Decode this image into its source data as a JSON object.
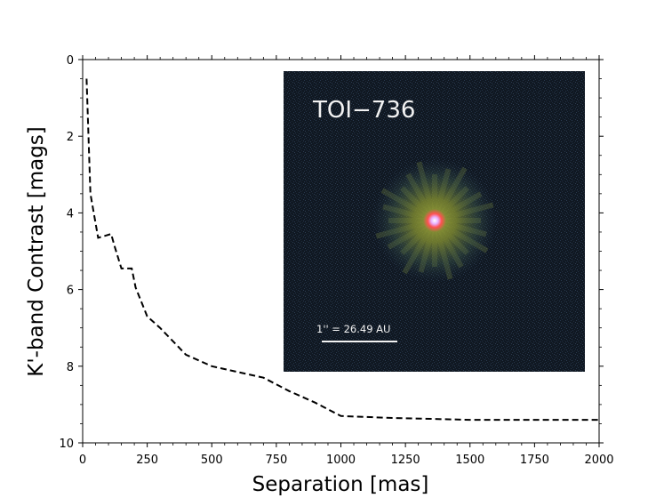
{
  "chart_data": {
    "type": "line",
    "title": "",
    "xlabel": "Separation [mas]",
    "ylabel": "K'-band Contrast [mags]",
    "xlim": [
      0,
      2000
    ],
    "ylim": [
      10,
      0
    ],
    "y_inverted": true,
    "x_ticks": [
      0,
      250,
      500,
      750,
      1000,
      1250,
      1500,
      1750,
      2000
    ],
    "y_ticks": [
      0,
      2,
      4,
      6,
      8,
      10
    ],
    "grid": false,
    "legend": "none",
    "series": [
      {
        "style": "dashed",
        "color": "#000000",
        "x": [
          15,
          30,
          60,
          85,
          110,
          125,
          150,
          190,
          205,
          250,
          300,
          400,
          500,
          600,
          700,
          800,
          900,
          1000,
          1200,
          1500,
          2000
        ],
        "y": [
          0.5,
          3.5,
          4.65,
          4.6,
          4.55,
          4.9,
          5.45,
          5.45,
          5.95,
          6.7,
          7.0,
          7.7,
          8.0,
          8.15,
          8.3,
          8.65,
          8.95,
          9.3,
          9.35,
          9.4,
          9.4
        ]
      }
    ],
    "inset": {
      "label": "TOI−736",
      "scale_bar_label": "1'' = 26.49 AU",
      "background_color": "#0e1620",
      "halo_color": "#7e8a2a",
      "core_color": "#ff5a5a"
    }
  }
}
